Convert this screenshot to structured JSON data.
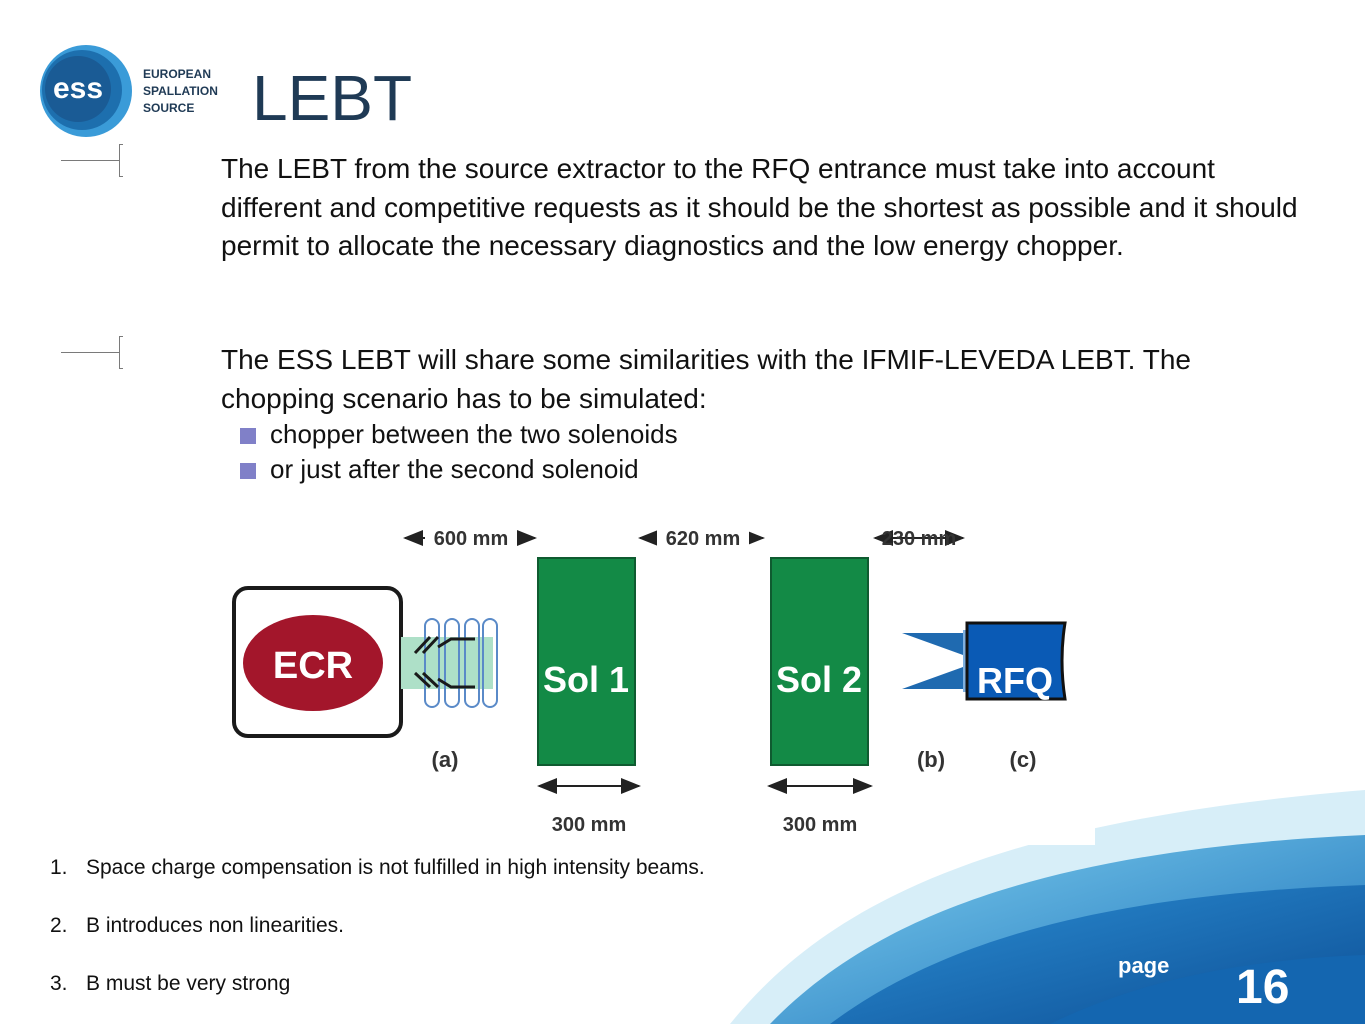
{
  "logo": {
    "mark": "ess",
    "line1": "EUROPEAN",
    "line2": "SPALLATION",
    "line3": "SOURCE"
  },
  "title": "LEBT",
  "paragraphs": [
    "The LEBT from the source extractor to the RFQ entrance must take into account different and competitive requests as it should be the shortest as possible and it should permit to allocate the necessary diagnostics and the low energy chopper.",
    "The ESS LEBT will share some similarities with the IFMIF-LEVEDA LEBT. The chopping scenario has to be simulated:"
  ],
  "bullets": [
    "chopper between the two solenoids",
    "or just after the second solenoid"
  ],
  "diagram": {
    "dim_600": "600 mm",
    "dim_620": "620 mm",
    "dim_230": "230 mm",
    "ecr": "ECR",
    "sol1": "Sol 1",
    "sol2": "Sol 2",
    "rfq": "RFQ",
    "label_a": "(a)",
    "label_b": "(b)",
    "label_c": "(c)",
    "dim_300_1": "300 mm",
    "dim_300_2": "300 mm",
    "colors": {
      "solenoid": "#138a46",
      "ecr": "#a3162b",
      "rfq": "#0a5ab5",
      "coil": "#aee0c8"
    }
  },
  "notes": [
    {
      "num": "1.",
      "text": "Space charge compensation is not fulfilled in high intensity beams."
    },
    {
      "num": "2.",
      "text": "B introduces non linearities."
    },
    {
      "num": "3.",
      "text": "B must be very strong"
    }
  ],
  "footer": {
    "page_label": "page",
    "page_number": "16"
  }
}
